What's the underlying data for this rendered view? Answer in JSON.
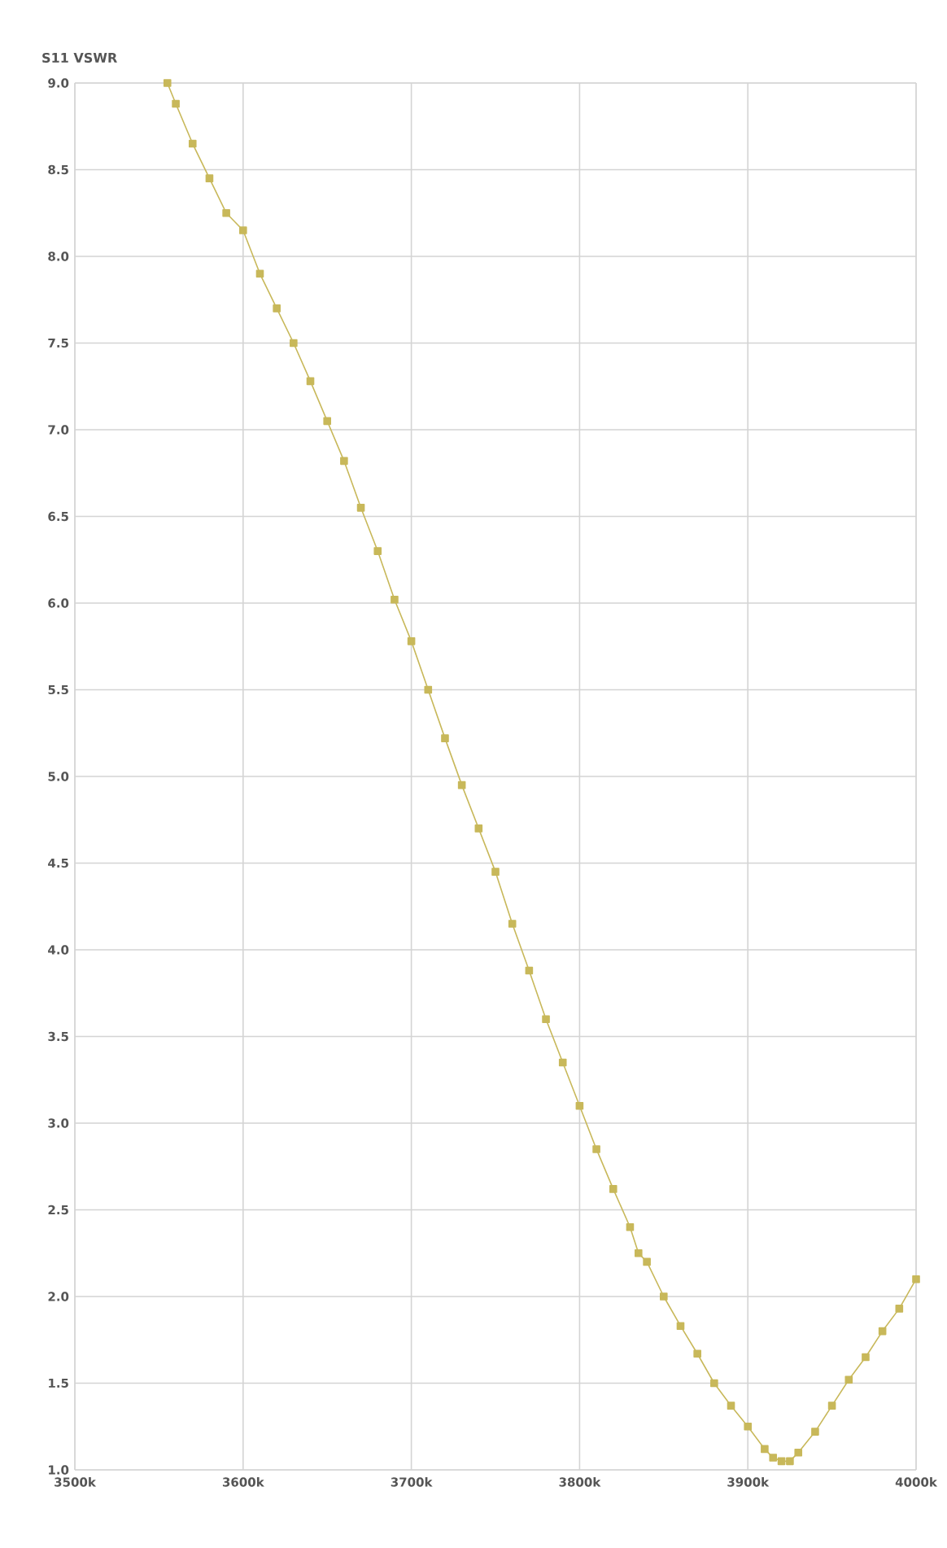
{
  "chart_data": {
    "type": "line",
    "title": "S11 VSWR",
    "x": [
      3555,
      3560,
      3570,
      3580,
      3590,
      3600,
      3610,
      3620,
      3630,
      3640,
      3650,
      3660,
      3670,
      3680,
      3690,
      3700,
      3710,
      3720,
      3730,
      3740,
      3750,
      3760,
      3770,
      3780,
      3790,
      3800,
      3810,
      3820,
      3830,
      3835,
      3840,
      3850,
      3860,
      3870,
      3880,
      3890,
      3900,
      3910,
      3915,
      3920,
      3925,
      3930,
      3940,
      3950,
      3960,
      3970,
      3980,
      3990,
      4000
    ],
    "series": [
      {
        "color": "#c8b85a",
        "values": [
          9.0,
          8.88,
          8.65,
          8.45,
          8.25,
          8.15,
          7.9,
          7.7,
          7.5,
          7.28,
          7.05,
          6.82,
          6.55,
          6.3,
          6.02,
          5.78,
          5.5,
          5.22,
          4.95,
          4.7,
          4.45,
          4.15,
          3.88,
          3.6,
          3.35,
          3.1,
          2.85,
          2.62,
          2.4,
          2.25,
          2.2,
          2.0,
          1.83,
          1.67,
          1.5,
          1.37,
          1.25,
          1.12,
          1.07,
          1.05,
          1.05,
          1.1,
          1.22,
          1.37,
          1.52,
          1.65,
          1.8,
          1.93,
          2.1
        ]
      }
    ],
    "xlim": [
      3500,
      4000
    ],
    "ylim": [
      1.0,
      9.0
    ],
    "xticks": [
      {
        "value": 3500,
        "label": "3500k"
      },
      {
        "value": 3600,
        "label": "3600k"
      },
      {
        "value": 3700,
        "label": "3700k"
      },
      {
        "value": 3800,
        "label": "3800k"
      },
      {
        "value": 3900,
        "label": "3900k"
      },
      {
        "value": 4000,
        "label": "4000k"
      }
    ],
    "yticks": [
      {
        "value": 1.0,
        "label": "1.0"
      },
      {
        "value": 1.5,
        "label": "1.5"
      },
      {
        "value": 2.0,
        "label": "2.0"
      },
      {
        "value": 2.5,
        "label": "2.5"
      },
      {
        "value": 3.0,
        "label": "3.0"
      },
      {
        "value": 3.5,
        "label": "3.5"
      },
      {
        "value": 4.0,
        "label": "4.0"
      },
      {
        "value": 4.5,
        "label": "4.5"
      },
      {
        "value": 5.0,
        "label": "5.0"
      },
      {
        "value": 5.5,
        "label": "5.5"
      },
      {
        "value": 6.0,
        "label": "6.0"
      },
      {
        "value": 6.5,
        "label": "6.5"
      },
      {
        "value": 7.0,
        "label": "7.0"
      },
      {
        "value": 7.5,
        "label": "7.5"
      },
      {
        "value": 8.0,
        "label": "8.0"
      },
      {
        "value": 8.5,
        "label": "8.5"
      },
      {
        "value": 9.0,
        "label": "9.0"
      }
    ],
    "grid": true,
    "marker": "square",
    "line_style": "solid"
  }
}
